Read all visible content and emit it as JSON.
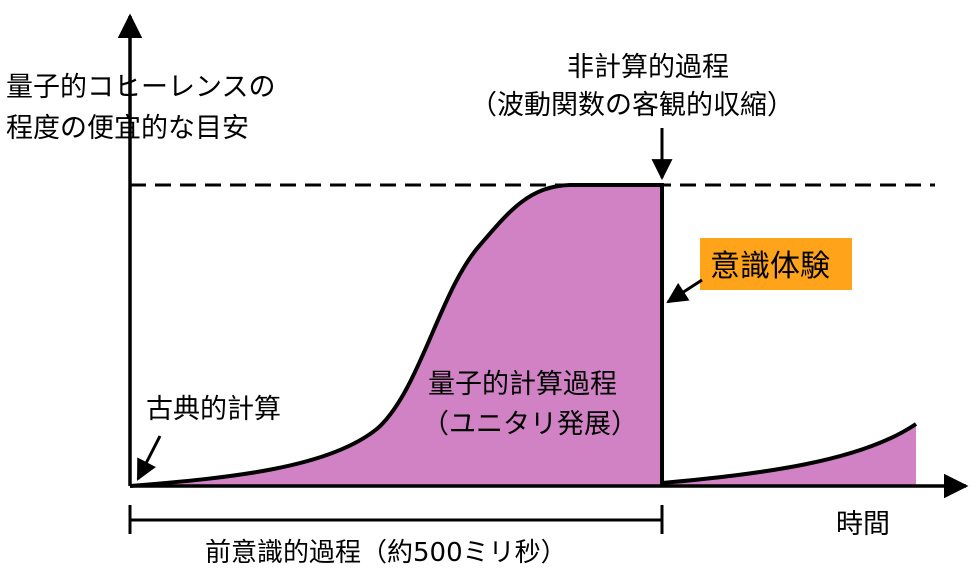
{
  "y_axis_label": {
    "line1": "量子的コヒーレンスの",
    "line2": "程度の便宜的な目安"
  },
  "x_axis_label": "時間",
  "non_computable": {
    "line1": "非計算的過程",
    "line2": "（波動関数の客観的収縮）"
  },
  "consciousness": {
    "label": "意識体験",
    "bg_color": "#ffa31a"
  },
  "quantum_computation": {
    "line1": "量子的計算過程",
    "line2": "（ユニタリ発展）",
    "fill_color": "#d082c4"
  },
  "classical_computation": "古典的計算",
  "preconscious_process": "前意識的過程（約500ミリ秒）"
}
